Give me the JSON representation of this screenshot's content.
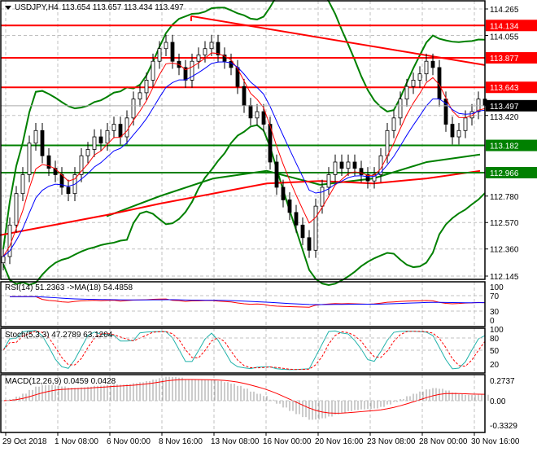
{
  "header": {
    "symbol": "USDJPY,H4",
    "ohlc": "113.654 113.657 113.434 113.497"
  },
  "colors": {
    "red": "#ff0000",
    "green": "#008000",
    "blue": "#0000ff",
    "teal": "#20b2aa",
    "grid": "#c0c0c0",
    "black": "#000000"
  },
  "chart_data": [
    {
      "type": "candlestick",
      "title": "USDJPY,H4",
      "ylim": [
        112.145,
        114.265
      ],
      "y_ticks": [
        "114.265",
        "114.055",
        "113.420",
        "112.780",
        "112.570",
        "112.360",
        "112.145"
      ],
      "x_ticks": [
        "29 Oct 2018",
        "1 Nov 08:00",
        "6 Nov 00:00",
        "8 Nov 16:00",
        "13 Nov 08:00",
        "16 Nov 00:00",
        "20 Nov 16:00",
        "23 Nov 08:00",
        "28 Nov 00:00",
        "30 Nov 16:00"
      ],
      "closes": [
        112.3,
        112.55,
        112.8,
        112.95,
        113.2,
        113.3,
        113.1,
        113.0,
        112.95,
        112.85,
        112.8,
        112.95,
        113.1,
        113.15,
        113.25,
        113.2,
        113.3,
        113.35,
        113.25,
        113.4,
        113.55,
        113.6,
        113.7,
        113.85,
        113.95,
        114.0,
        113.85,
        113.8,
        113.7,
        113.85,
        113.9,
        113.95,
        114.0,
        113.9,
        113.85,
        113.8,
        113.65,
        113.5,
        113.4,
        113.45,
        113.35,
        113.05,
        112.85,
        112.75,
        112.65,
        112.55,
        112.45,
        112.35,
        112.7,
        112.85,
        112.95,
        113.05,
        113.0,
        113.05,
        113.0,
        112.95,
        112.9,
        112.95,
        113.1,
        113.3,
        113.4,
        113.55,
        113.65,
        113.7,
        113.75,
        113.85,
        113.8,
        113.55,
        113.35,
        113.25,
        113.3,
        113.4,
        113.45,
        113.55,
        113.497
      ],
      "long_ma_red": [
        112.47,
        112.55,
        112.63,
        112.72,
        112.8,
        112.88,
        112.9,
        112.88,
        112.92,
        112.98
      ],
      "long_ma_green": [
        112.4,
        112.5,
        112.62,
        112.78,
        112.92,
        112.98,
        112.87,
        112.92,
        113.05,
        113.11
      ],
      "current_price": "113.497",
      "levels": [
        {
          "value": "114.134",
          "color": "red"
        },
        {
          "value": "113.877",
          "color": "red"
        },
        {
          "value": "113.643",
          "color": "red"
        },
        {
          "value": "113.182",
          "color": "green"
        },
        {
          "value": "112.966",
          "color": "green"
        }
      ],
      "trendline": [
        114.208,
        113.82
      ]
    },
    {
      "type": "line",
      "title": "RSI(14) 51.2363  ->MA(18) 54.4858",
      "y_ticks": [
        "100",
        "70",
        "30",
        "0"
      ],
      "ylim": [
        0,
        100
      ]
    },
    {
      "type": "line",
      "title": "Stoch(5,3,3) 47.2789 63.1204",
      "y_ticks": [
        "100",
        "80",
        "50",
        "20"
      ],
      "ylim": [
        0,
        100
      ]
    },
    {
      "type": "bar",
      "title": "MACD(12,26,9) 0.0459 0.0428",
      "y_ticks": [
        "0.2737",
        "0.00",
        "-0.3329"
      ],
      "ylim": [
        -0.3329,
        0.2737
      ]
    }
  ]
}
